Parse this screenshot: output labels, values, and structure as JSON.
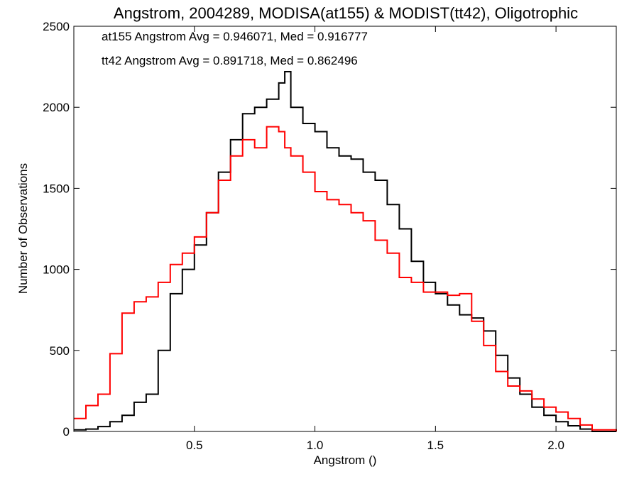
{
  "chart_data": {
    "type": "line",
    "title": "Angstrom, 2004289, MODISA(at155) & MODIST(tt42), Oligotrophic",
    "xlabel": "Angstrom ()",
    "ylabel": "Number of Observations",
    "xlim": [
      0.0,
      2.25
    ],
    "ylim": [
      0,
      2500
    ],
    "x_ticks": [
      0.5,
      1.0,
      1.5,
      2.0
    ],
    "x_tick_labels": [
      "0.5",
      "1.0",
      "1.5",
      "2.0"
    ],
    "y_ticks": [
      0,
      500,
      1000,
      1500,
      2000,
      2500
    ],
    "y_tick_labels": [
      "0",
      "500",
      "1000",
      "1500",
      "2000",
      "2500"
    ],
    "grid": false,
    "step": true,
    "annotations": [
      {
        "text": "at155 Angstrom Avg = 0.946071, Med = 0.916777",
        "color": "#000000"
      },
      {
        "text": "tt42 Angstrom Avg = 0.891718, Med = 0.862496",
        "color": "#ff0000"
      }
    ],
    "x": [
      0.0,
      0.05,
      0.1,
      0.15,
      0.2,
      0.25,
      0.3,
      0.35,
      0.4,
      0.45,
      0.5,
      0.55,
      0.6,
      0.65,
      0.7,
      0.75,
      0.8,
      0.85,
      0.875,
      0.9,
      0.95,
      1.0,
      1.05,
      1.1,
      1.15,
      1.2,
      1.25,
      1.3,
      1.35,
      1.4,
      1.45,
      1.5,
      1.55,
      1.6,
      1.65,
      1.7,
      1.75,
      1.8,
      1.85,
      1.9,
      1.95,
      2.0,
      2.05,
      2.1,
      2.15,
      2.25
    ],
    "series": [
      {
        "name": "at155",
        "color": "#000000",
        "values": [
          10,
          15,
          30,
          60,
          100,
          180,
          230,
          500,
          850,
          1000,
          1150,
          1350,
          1600,
          1800,
          1960,
          2000,
          2050,
          2150,
          2220,
          2000,
          1900,
          1850,
          1750,
          1700,
          1680,
          1600,
          1550,
          1400,
          1250,
          1050,
          920,
          850,
          780,
          720,
          700,
          620,
          470,
          330,
          230,
          150,
          100,
          60,
          35,
          15,
          0,
          0
        ]
      },
      {
        "name": "tt42",
        "color": "#ff0000",
        "values": [
          80,
          160,
          230,
          480,
          730,
          800,
          830,
          920,
          1030,
          1100,
          1200,
          1350,
          1550,
          1700,
          1800,
          1750,
          1880,
          1850,
          1750,
          1700,
          1600,
          1480,
          1430,
          1400,
          1350,
          1300,
          1180,
          1100,
          950,
          920,
          860,
          860,
          840,
          850,
          680,
          530,
          370,
          280,
          250,
          200,
          150,
          120,
          80,
          40,
          10,
          0
        ]
      }
    ]
  }
}
